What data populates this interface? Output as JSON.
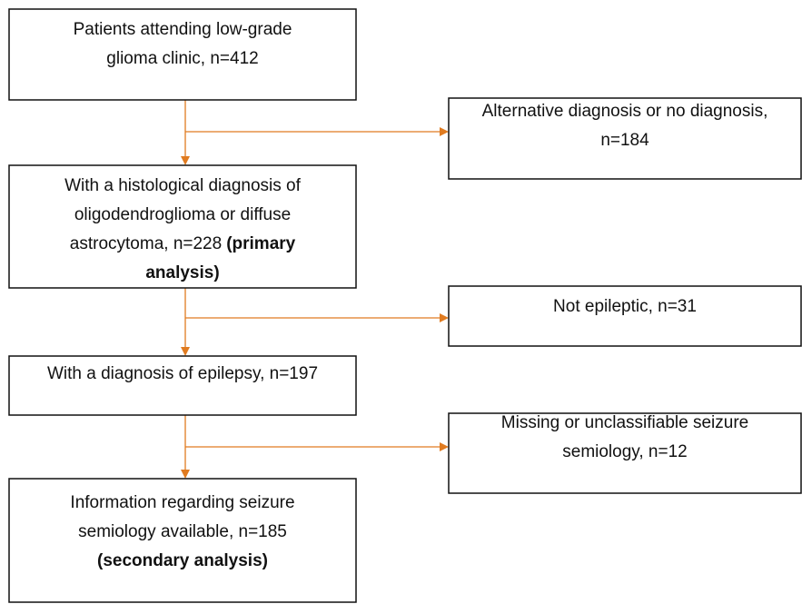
{
  "nodes": [
    {
      "lines": [
        [
          {
            "t": "Patients attending low-grade"
          }
        ],
        [
          {
            "t": "glioma clinic, n=412"
          }
        ]
      ]
    },
    {
      "lines": [
        [
          {
            "t": "Alternative diagnosis or no diagnosis,"
          }
        ],
        [
          {
            "t": "n=184"
          }
        ]
      ]
    },
    {
      "lines": [
        [
          {
            "t": "With a histological diagnosis of"
          }
        ],
        [
          {
            "t": "oligodendroglioma or diffuse"
          }
        ],
        [
          {
            "t": "astrocytoma, n=228"
          },
          {
            "t": "(primary",
            "bold": true
          }
        ],
        [
          {
            "t": "analysis)",
            "bold": true
          }
        ]
      ]
    },
    {
      "lines": [
        [
          {
            "t": "Not epileptic, n=31"
          }
        ]
      ]
    },
    {
      "lines": [
        [
          {
            "t": "With a diagnosis of epilepsy, n=197"
          }
        ]
      ]
    },
    {
      "lines": [
        [
          {
            "t": "Missing or unclassifiable seizure"
          }
        ],
        [
          {
            "t": "semiology, n=12"
          }
        ]
      ]
    },
    {
      "lines": [
        [
          {
            "t": "Information regarding seizure"
          }
        ],
        [
          {
            "t": "semiology available, n=185"
          }
        ],
        [
          {
            "t": "(secondary analysis)",
            "bold": true
          }
        ]
      ]
    }
  ]
}
